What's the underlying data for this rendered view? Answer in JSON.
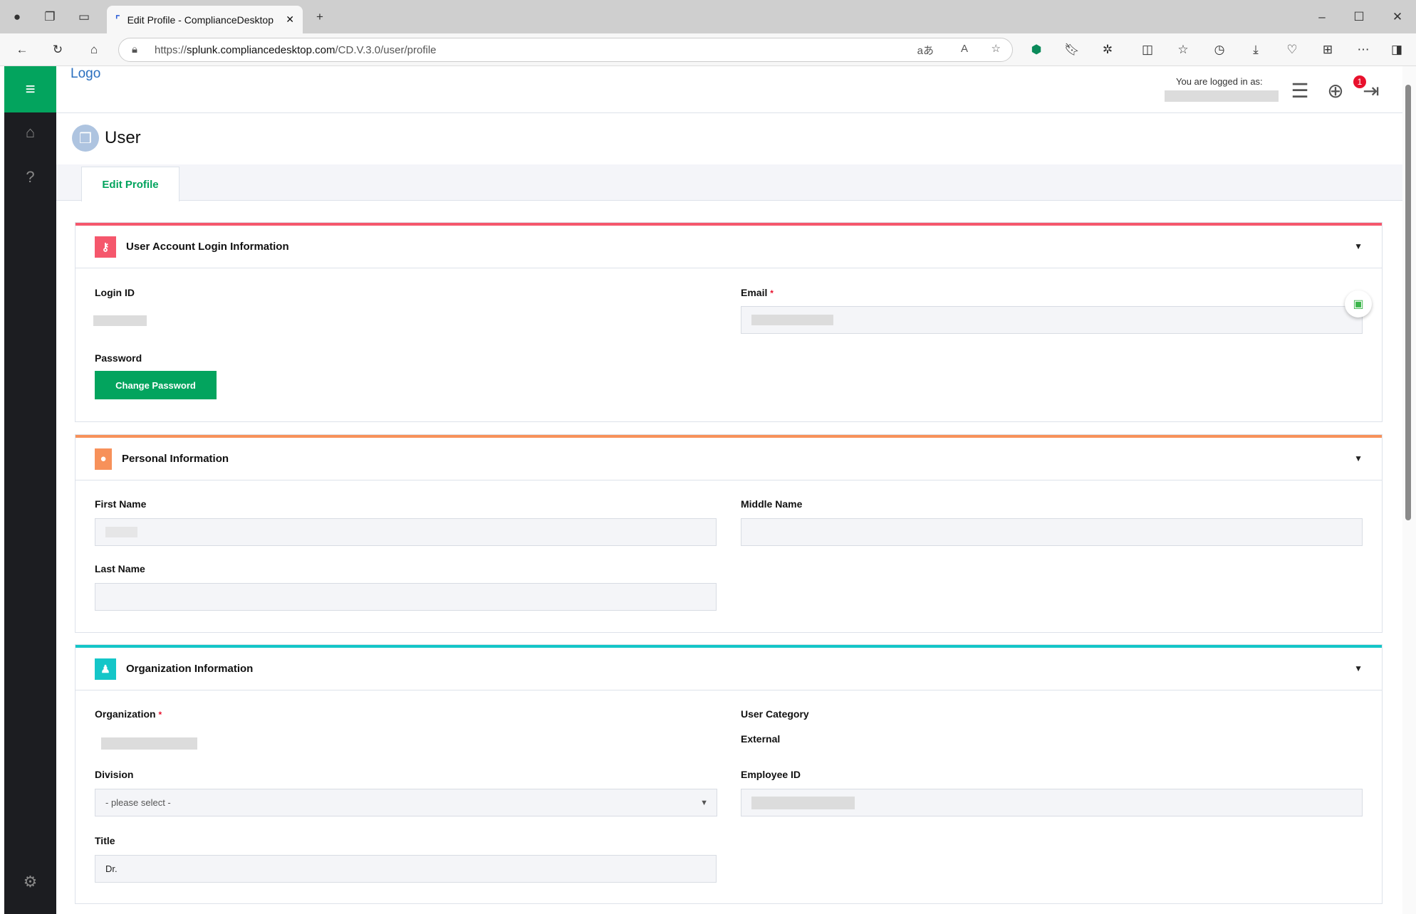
{
  "browser": {
    "tab_title": "Edit Profile - ComplianceDesktop",
    "url_prefix": "https://",
    "url_host": "splunk.compliancedesktop.com",
    "url_path": "/CD.V.3.0/user/profile"
  },
  "header": {
    "logo_alt": "Logo",
    "logged_in_label": "You are logged in as:",
    "notification_count": "1"
  },
  "page": {
    "title": "User",
    "tabs": [
      {
        "label": "Edit Profile",
        "active": true
      }
    ]
  },
  "sections": {
    "login": {
      "title": "User Account Login Information",
      "accent": "#f5576c",
      "login_id_label": "Login ID",
      "email_label": "Email",
      "required": "*",
      "password_label": "Password",
      "change_password_label": "Change Password"
    },
    "personal": {
      "title": "Personal Information",
      "accent": "#f7915a",
      "first_name_label": "First Name",
      "middle_name_label": "Middle Name",
      "last_name_label": "Last Name"
    },
    "organization": {
      "title": "Organization Information",
      "accent": "#14c6c8",
      "organization_label": "Organization",
      "required": "*",
      "user_category_label": "User Category",
      "user_category_value": "External",
      "division_label": "Division",
      "division_value": "- please select -",
      "employee_id_label": "Employee ID",
      "title_label": "Title",
      "title_value": "Dr."
    }
  },
  "colors": {
    "brand": "#03a45e",
    "sidebar": "#1c1d21"
  }
}
